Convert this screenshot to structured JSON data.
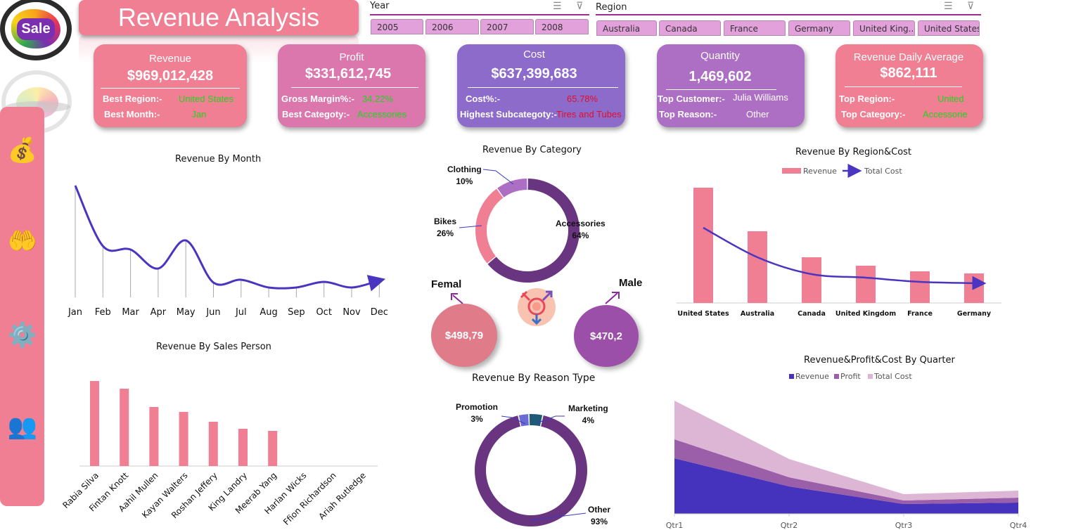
{
  "header": {
    "title": "Revenue Analysis",
    "logo_text": "Sale"
  },
  "sidebar": {
    "items": [
      {
        "name": "money-bag-icon",
        "glyph": "💰"
      },
      {
        "name": "hand-money-icon",
        "glyph": "🤲"
      },
      {
        "name": "gear-cost-icon",
        "glyph": "⚙️"
      },
      {
        "name": "team-icon",
        "glyph": "👥"
      }
    ]
  },
  "slicers": {
    "year": {
      "label": "Year",
      "multi_select_icon": "☰",
      "clear_filter_icon": "⊽",
      "options": [
        "2005",
        "2006",
        "2007",
        "2008"
      ]
    },
    "region": {
      "label": "Region",
      "multi_select_icon": "☰",
      "clear_filter_icon": "⊽",
      "options": [
        "Australia",
        "Canada",
        "France",
        "Germany",
        "United King...",
        "United States"
      ]
    }
  },
  "kpis": {
    "revenue": {
      "title": "Revenue",
      "value": "$969,012,428",
      "rows": [
        {
          "label": "Best Region:-",
          "value": "United States"
        },
        {
          "label": "Best Month:-",
          "value": "Jan"
        }
      ],
      "color": "#f07f93"
    },
    "profit": {
      "title": "Profit",
      "value": "$331,612,745",
      "rows": [
        {
          "label": "Gross Margin%:-",
          "value": "34.22%"
        },
        {
          "label": "Best Categoty:-",
          "value": "Accessories"
        }
      ],
      "color": "#db77ad"
    },
    "cost": {
      "title": "Cost",
      "value": "$637,399,683",
      "rows": [
        {
          "label": "Cost%:-",
          "value": "65.78%"
        },
        {
          "label": "Highest Subcategoty:-",
          "value": "Tires and Tubes"
        }
      ],
      "color": "#8d6bcb"
    },
    "quantity": {
      "title": "Quantity",
      "value": "1,469,602",
      "rows": [
        {
          "label": "Top Customer:-",
          "value": "Julia Williams"
        },
        {
          "label": "Top Reason:-",
          "value": "Other"
        }
      ],
      "color": "#ad6fc4"
    },
    "daily": {
      "title": "Revenue Daily Average",
      "value": "$862,111",
      "rows": [
        {
          "label": "Top Region:-",
          "value": "United"
        },
        {
          "label": "Top Category:-",
          "value": "Accessorie"
        }
      ],
      "color": "#f07f93"
    }
  },
  "gender": {
    "female": {
      "label": "Femal",
      "value": "$498,79",
      "color": "#e07b8a"
    },
    "male": {
      "label": "Male",
      "value": "$470,2",
      "color": "#9b4fa8"
    },
    "icon": "gender-symbols-icon"
  },
  "chart_data": [
    {
      "id": "month",
      "type": "line",
      "title": "Revenue By Month",
      "categories": [
        "Jan",
        "Feb",
        "Mar",
        "Apr",
        "May",
        "Jun",
        "Jul",
        "Aug",
        "Sep",
        "Oct",
        "Nov",
        "Dec"
      ],
      "values": [
        159,
        73,
        68,
        41,
        81,
        21,
        25,
        14,
        14,
        22,
        14,
        24
      ],
      "ylim": [
        0,
        160
      ],
      "grid": false,
      "color": "#4a35c0"
    },
    {
      "id": "salesperson",
      "type": "bar",
      "title": "Revenue By Sales Person",
      "categories": [
        "Rabia Silva",
        "Fintan Knott",
        "Aahil Mullen",
        "Kayan Walters",
        "Roshan Jeffery",
        "King Landry",
        "Meerab Yang",
        "Harlan Wicks",
        "Ffion Richardson",
        "Ariah Rutledge"
      ],
      "values": [
        121,
        110,
        84,
        77,
        63,
        53,
        50,
        0,
        0,
        0
      ],
      "ylim": [
        0,
        130
      ],
      "color": "#f07f93"
    },
    {
      "id": "category",
      "type": "pie",
      "title": "Revenue By Category",
      "labels": [
        "Accessories",
        "Bikes",
        "Clothing"
      ],
      "values": [
        64,
        26,
        10
      ],
      "display": [
        "64%",
        "26%",
        "10%"
      ],
      "colors": [
        "#6a3580",
        "#f07f93",
        "#ad6fc4"
      ]
    },
    {
      "id": "reason",
      "type": "pie",
      "title": "Revenue By Reason Type",
      "labels": [
        "Other",
        "Promotion",
        "Marketing"
      ],
      "values": [
        93,
        3,
        4
      ],
      "display": [
        "93%",
        "3%",
        "4%"
      ],
      "colors": [
        "#6a3580",
        "#6a6ad4",
        "#1f5a78"
      ]
    },
    {
      "id": "region",
      "type": "bar",
      "title": "Revenue By Region&Cost",
      "categories": [
        "United States",
        "Australia",
        "Canada",
        "United Kingdom",
        "France",
        "Germany"
      ],
      "series": [
        {
          "name": "Revenue",
          "values": [
            164,
            102,
            65,
            53,
            45,
            42
          ],
          "color": "#f07f93"
        },
        {
          "name": "Total Cost",
          "values": [
            107,
            65,
            41,
            36,
            30,
            28
          ],
          "color": "#4a35c0"
        }
      ],
      "ylim": [
        0,
        170
      ],
      "legend": "top-center"
    },
    {
      "id": "quarter",
      "type": "area",
      "title": "Revenue&Profit&Cost By Quarter",
      "categories": [
        "Qtr1",
        "Qtr2",
        "Qtr3",
        "Qtr4"
      ],
      "series": [
        {
          "name": "Revenue",
          "values": [
            79,
            39,
            14,
            16
          ],
          "color": "#4533bd"
        },
        {
          "name": "Profit",
          "values": [
            27,
            13,
            5,
            7
          ],
          "color": "#9b5ea8"
        },
        {
          "name": "Total Cost",
          "values": [
            55,
            26,
            9,
            10
          ],
          "color": "#ddb6d5"
        }
      ],
      "stacked": true,
      "ylim": [
        0,
        165
      ],
      "legend": "top-center"
    }
  ]
}
